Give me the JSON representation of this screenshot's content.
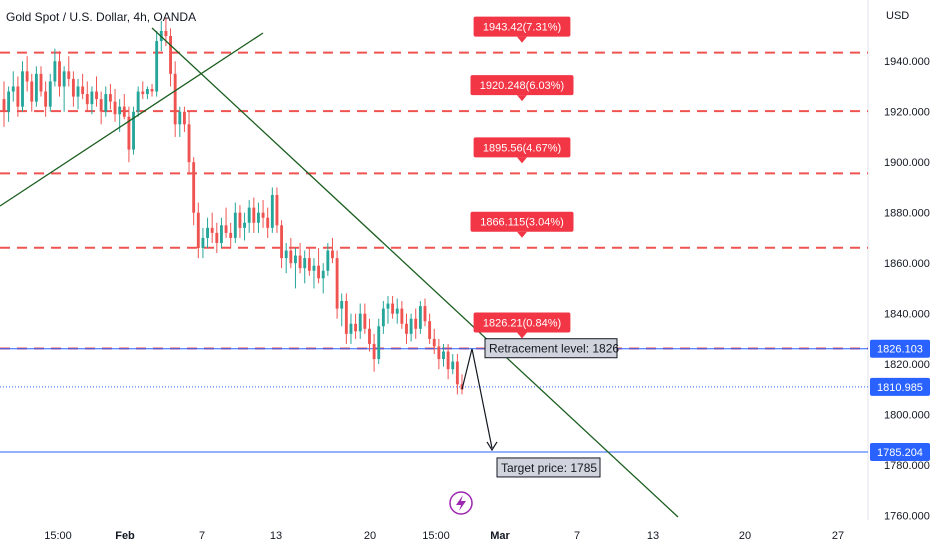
{
  "header": {
    "symbol_title": "Gold Spot / U.S. Dollar, 4h, OANDA",
    "currency": "USD"
  },
  "colors": {
    "up": "#26a69a",
    "down": "#ef5350",
    "level_line": "#ef5350",
    "trendline": "#1b5e20",
    "current_line": "#2962ff",
    "badge_red": "#f23645",
    "badge_blue": "#2962ff"
  },
  "chart_data": {
    "type": "candlestick",
    "ylim": [
      1752,
      1970
    ],
    "y_ticks": [
      1760,
      1780,
      1800,
      1820,
      1840,
      1860,
      1880,
      1900,
      1920,
      1940
    ],
    "y_tick_labels": [
      "1760.000",
      "1780.000",
      "1800.000",
      "1820.000",
      "1840.000",
      "1860.000",
      "1880.000",
      "1900.000",
      "1920.000",
      "1940.000"
    ],
    "x_tick_labels": [
      "15:00",
      "Feb",
      "7",
      "13",
      "20",
      "15:00",
      "Mar",
      "7",
      "13",
      "20",
      "27"
    ],
    "levels": [
      {
        "price": 1943.42,
        "label": "1943.42(7.31%)"
      },
      {
        "price": 1920.248,
        "label": "1920.248(6.03%)"
      },
      {
        "price": 1895.56,
        "label": "1895.56(4.67%)"
      },
      {
        "price": 1866.115,
        "label": "1866.115(3.04%)"
      },
      {
        "price": 1826.21,
        "label": "1826.21(0.84%)"
      }
    ],
    "price_badges": [
      {
        "price": 1826.103,
        "label": "1826.103"
      },
      {
        "price": 1810.985,
        "label": "1810.985"
      },
      {
        "price": 1785.204,
        "label": "1785.204"
      }
    ],
    "annotations": [
      {
        "text": "Retracement level: 1826"
      },
      {
        "text": "Target price: 1785"
      }
    ],
    "candles": [
      {
        "o": 1925,
        "h": 1932,
        "l": 1914,
        "c": 1920
      },
      {
        "o": 1920,
        "h": 1930,
        "l": 1916,
        "c": 1928
      },
      {
        "o": 1928,
        "h": 1936,
        "l": 1924,
        "c": 1930
      },
      {
        "o": 1930,
        "h": 1934,
        "l": 1918,
        "c": 1922
      },
      {
        "o": 1922,
        "h": 1940,
        "l": 1920,
        "c": 1936
      },
      {
        "o": 1936,
        "h": 1942,
        "l": 1928,
        "c": 1932
      },
      {
        "o": 1932,
        "h": 1935,
        "l": 1920,
        "c": 1924
      },
      {
        "o": 1924,
        "h": 1938,
        "l": 1922,
        "c": 1935
      },
      {
        "o": 1935,
        "h": 1938,
        "l": 1926,
        "c": 1928
      },
      {
        "o": 1928,
        "h": 1932,
        "l": 1918,
        "c": 1922
      },
      {
        "o": 1922,
        "h": 1935,
        "l": 1920,
        "c": 1932
      },
      {
        "o": 1932,
        "h": 1945,
        "l": 1930,
        "c": 1940
      },
      {
        "o": 1940,
        "h": 1944,
        "l": 1926,
        "c": 1930
      },
      {
        "o": 1930,
        "h": 1938,
        "l": 1920,
        "c": 1936
      },
      {
        "o": 1936,
        "h": 1942,
        "l": 1930,
        "c": 1933
      },
      {
        "o": 1933,
        "h": 1936,
        "l": 1922,
        "c": 1926
      },
      {
        "o": 1926,
        "h": 1933,
        "l": 1921,
        "c": 1930
      },
      {
        "o": 1930,
        "h": 1935,
        "l": 1925,
        "c": 1927
      },
      {
        "o": 1927,
        "h": 1932,
        "l": 1920,
        "c": 1923
      },
      {
        "o": 1923,
        "h": 1930,
        "l": 1919,
        "c": 1928
      },
      {
        "o": 1928,
        "h": 1934,
        "l": 1922,
        "c": 1925
      },
      {
        "o": 1925,
        "h": 1928,
        "l": 1915,
        "c": 1920
      },
      {
        "o": 1920,
        "h": 1930,
        "l": 1918,
        "c": 1927
      },
      {
        "o": 1927,
        "h": 1931,
        "l": 1921,
        "c": 1924
      },
      {
        "o": 1924,
        "h": 1929,
        "l": 1916,
        "c": 1919
      },
      {
        "o": 1919,
        "h": 1925,
        "l": 1912,
        "c": 1922
      },
      {
        "o": 1922,
        "h": 1927,
        "l": 1917,
        "c": 1918
      },
      {
        "o": 1918,
        "h": 1922,
        "l": 1900,
        "c": 1905
      },
      {
        "o": 1905,
        "h": 1922,
        "l": 1903,
        "c": 1920
      },
      {
        "o": 1920,
        "h": 1930,
        "l": 1918,
        "c": 1928
      },
      {
        "o": 1928,
        "h": 1932,
        "l": 1925,
        "c": 1927
      },
      {
        "o": 1927,
        "h": 1930,
        "l": 1925,
        "c": 1929
      },
      {
        "o": 1929,
        "h": 1931,
        "l": 1926,
        "c": 1928
      },
      {
        "o": 1928,
        "h": 1952,
        "l": 1926,
        "c": 1948
      },
      {
        "o": 1948,
        "h": 1956,
        "l": 1944,
        "c": 1952
      },
      {
        "o": 1952,
        "h": 1957,
        "l": 1946,
        "c": 1950
      },
      {
        "o": 1950,
        "h": 1953,
        "l": 1930,
        "c": 1935
      },
      {
        "o": 1935,
        "h": 1940,
        "l": 1910,
        "c": 1915
      },
      {
        "o": 1915,
        "h": 1922,
        "l": 1910,
        "c": 1920
      },
      {
        "o": 1920,
        "h": 1922,
        "l": 1912,
        "c": 1915
      },
      {
        "o": 1915,
        "h": 1920,
        "l": 1895,
        "c": 1900
      },
      {
        "o": 1900,
        "h": 1902,
        "l": 1875,
        "c": 1880
      },
      {
        "o": 1880,
        "h": 1884,
        "l": 1862,
        "c": 1866
      },
      {
        "o": 1866,
        "h": 1874,
        "l": 1862,
        "c": 1870
      },
      {
        "o": 1870,
        "h": 1878,
        "l": 1866,
        "c": 1874
      },
      {
        "o": 1874,
        "h": 1880,
        "l": 1868,
        "c": 1872
      },
      {
        "o": 1872,
        "h": 1876,
        "l": 1864,
        "c": 1868
      },
      {
        "o": 1868,
        "h": 1878,
        "l": 1866,
        "c": 1875
      },
      {
        "o": 1875,
        "h": 1882,
        "l": 1870,
        "c": 1872
      },
      {
        "o": 1872,
        "h": 1876,
        "l": 1866,
        "c": 1870
      },
      {
        "o": 1870,
        "h": 1884,
        "l": 1868,
        "c": 1880
      },
      {
        "o": 1880,
        "h": 1883,
        "l": 1870,
        "c": 1874
      },
      {
        "o": 1874,
        "h": 1880,
        "l": 1869,
        "c": 1876
      },
      {
        "o": 1876,
        "h": 1885,
        "l": 1872,
        "c": 1882
      },
      {
        "o": 1882,
        "h": 1886,
        "l": 1872,
        "c": 1876
      },
      {
        "o": 1876,
        "h": 1884,
        "l": 1872,
        "c": 1880
      },
      {
        "o": 1880,
        "h": 1885,
        "l": 1874,
        "c": 1878
      },
      {
        "o": 1878,
        "h": 1882,
        "l": 1870,
        "c": 1874
      },
      {
        "o": 1874,
        "h": 1890,
        "l": 1872,
        "c": 1887
      },
      {
        "o": 1887,
        "h": 1890,
        "l": 1872,
        "c": 1875
      },
      {
        "o": 1875,
        "h": 1877,
        "l": 1858,
        "c": 1862
      },
      {
        "o": 1862,
        "h": 1868,
        "l": 1856,
        "c": 1865
      },
      {
        "o": 1865,
        "h": 1870,
        "l": 1858,
        "c": 1860
      },
      {
        "o": 1860,
        "h": 1866,
        "l": 1850,
        "c": 1863
      },
      {
        "o": 1863,
        "h": 1868,
        "l": 1856,
        "c": 1858
      },
      {
        "o": 1858,
        "h": 1865,
        "l": 1852,
        "c": 1862
      },
      {
        "o": 1862,
        "h": 1866,
        "l": 1855,
        "c": 1857
      },
      {
        "o": 1857,
        "h": 1862,
        "l": 1850,
        "c": 1859
      },
      {
        "o": 1859,
        "h": 1866,
        "l": 1852,
        "c": 1854
      },
      {
        "o": 1854,
        "h": 1860,
        "l": 1848,
        "c": 1857
      },
      {
        "o": 1857,
        "h": 1868,
        "l": 1855,
        "c": 1865
      },
      {
        "o": 1865,
        "h": 1870,
        "l": 1860,
        "c": 1862
      },
      {
        "o": 1862,
        "h": 1865,
        "l": 1838,
        "c": 1842
      },
      {
        "o": 1842,
        "h": 1848,
        "l": 1835,
        "c": 1845
      },
      {
        "o": 1845,
        "h": 1848,
        "l": 1828,
        "c": 1832
      },
      {
        "o": 1832,
        "h": 1840,
        "l": 1828,
        "c": 1836
      },
      {
        "o": 1836,
        "h": 1840,
        "l": 1830,
        "c": 1833
      },
      {
        "o": 1833,
        "h": 1844,
        "l": 1830,
        "c": 1840
      },
      {
        "o": 1840,
        "h": 1844,
        "l": 1832,
        "c": 1834
      },
      {
        "o": 1834,
        "h": 1838,
        "l": 1825,
        "c": 1828
      },
      {
        "o": 1828,
        "h": 1832,
        "l": 1817,
        "c": 1822
      },
      {
        "o": 1822,
        "h": 1838,
        "l": 1820,
        "c": 1835
      },
      {
        "o": 1835,
        "h": 1845,
        "l": 1832,
        "c": 1842
      },
      {
        "o": 1842,
        "h": 1847,
        "l": 1836,
        "c": 1844
      },
      {
        "o": 1844,
        "h": 1847,
        "l": 1838,
        "c": 1840
      },
      {
        "o": 1840,
        "h": 1846,
        "l": 1836,
        "c": 1842
      },
      {
        "o": 1842,
        "h": 1845,
        "l": 1834,
        "c": 1836
      },
      {
        "o": 1836,
        "h": 1840,
        "l": 1828,
        "c": 1832
      },
      {
        "o": 1832,
        "h": 1840,
        "l": 1829,
        "c": 1838
      },
      {
        "o": 1838,
        "h": 1842,
        "l": 1830,
        "c": 1834
      },
      {
        "o": 1834,
        "h": 1845,
        "l": 1832,
        "c": 1843
      },
      {
        "o": 1843,
        "h": 1846,
        "l": 1835,
        "c": 1837
      },
      {
        "o": 1837,
        "h": 1840,
        "l": 1828,
        "c": 1830
      },
      {
        "o": 1830,
        "h": 1834,
        "l": 1824,
        "c": 1827
      },
      {
        "o": 1827,
        "h": 1830,
        "l": 1818,
        "c": 1822
      },
      {
        "o": 1822,
        "h": 1828,
        "l": 1819,
        "c": 1825
      },
      {
        "o": 1825,
        "h": 1828,
        "l": 1814,
        "c": 1818
      },
      {
        "o": 1818,
        "h": 1824,
        "l": 1816,
        "c": 1821
      },
      {
        "o": 1821,
        "h": 1824,
        "l": 1808,
        "c": 1812
      },
      {
        "o": 1812,
        "h": 1816,
        "l": 1808,
        "c": 1810
      }
    ]
  }
}
